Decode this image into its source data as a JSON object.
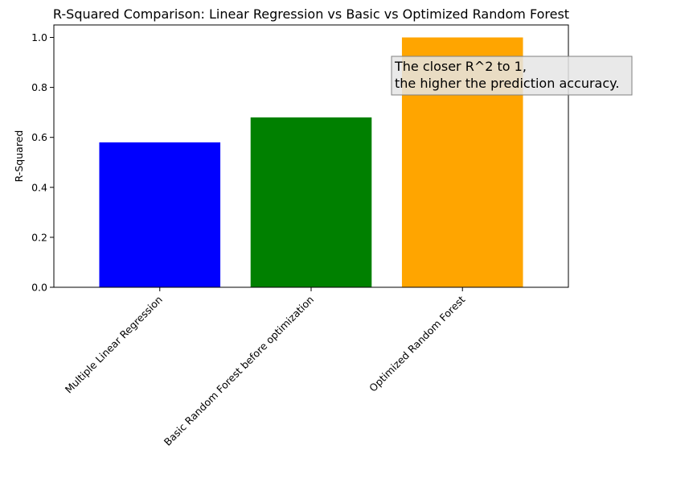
{
  "chart_data": {
    "type": "bar",
    "title": "R-Squared Comparison: Linear Regression vs Basic vs Optimized Random Forest",
    "xlabel": "",
    "ylabel": "R-Squared",
    "ylim": [
      0,
      1.05
    ],
    "yticks": [
      "0.0",
      "0.2",
      "0.4",
      "0.6",
      "0.8",
      "1.0"
    ],
    "categories": [
      "Multiple Linear Regression",
      "Basic Random Forest before optimization",
      "Optimized Random Forest"
    ],
    "values": [
      0.58,
      0.68,
      1.0
    ],
    "colors": [
      "#0000ff",
      "#008000",
      "#ffa500"
    ],
    "grid": false,
    "annotation": {
      "lines": [
        "The closer R^2 to 1,",
        "the higher the prediction accuracy."
      ],
      "box_color": "#e5e5e5",
      "border_color": "#808080"
    }
  }
}
